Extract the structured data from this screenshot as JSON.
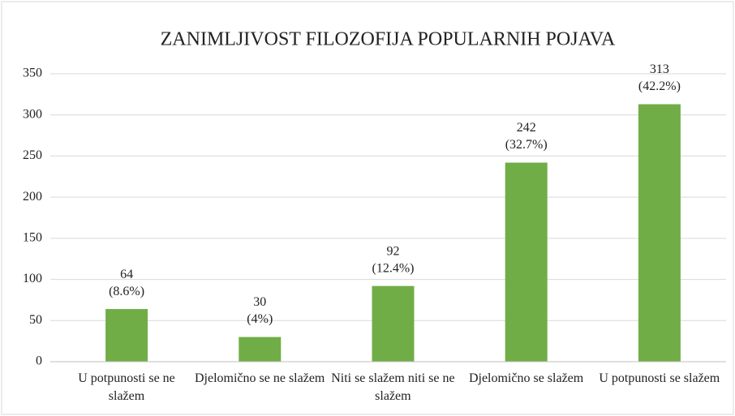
{
  "chart_data": {
    "type": "bar",
    "title": "ZANIMLJIVOST FILOZOFIJA POPULARNIH POJAVA",
    "categories": [
      "U potpunosti se ne slažem",
      "Djelomično se ne slažem",
      "Niti se slažem niti se ne slažem",
      "Djelomično se slažem",
      "U potpunosti se slažem"
    ],
    "values": [
      64,
      30,
      92,
      242,
      313
    ],
    "percent_labels": [
      "(8.6%)",
      "(4%)",
      "(12.4%)",
      "(32.7%)",
      "(42.2%)"
    ],
    "color": "#70ad47",
    "ylim": [
      0,
      350
    ],
    "yticks": [
      0,
      50,
      100,
      150,
      200,
      250,
      300,
      350
    ],
    "grid": true
  }
}
